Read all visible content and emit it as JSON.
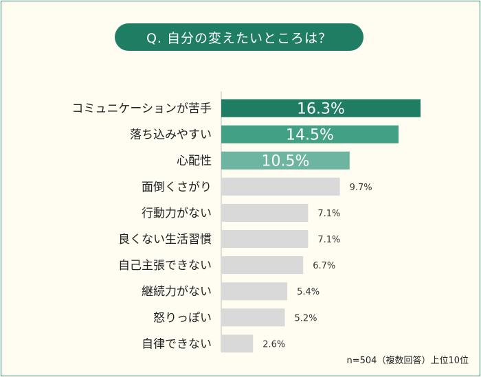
{
  "title": "Q. 自分の変えたいところは？",
  "note": "n=504（複数回答）上位10位",
  "chart_data": {
    "type": "bar",
    "orientation": "horizontal",
    "title": "Q. 自分の変えたいところは？",
    "unit": "%",
    "xlim": [
      0,
      17
    ],
    "categories": [
      "コミュニケーションが苦手",
      "落ち込みやすい",
      "心配性",
      "面倒くさがり",
      "行動力がない",
      "良くない生活習慣",
      "自己主張できない",
      "継続力がない",
      "怒りっぽい",
      "自律できない"
    ],
    "values": [
      16.3,
      14.5,
      10.5,
      9.7,
      7.1,
      7.1,
      6.7,
      5.4,
      5.2,
      2.6
    ],
    "labels": [
      "16.3%",
      "14.5%",
      "10.5%",
      "9.7%",
      "7.1%",
      "7.1%",
      "6.7%",
      "5.4%",
      "5.2%",
      "2.6%"
    ],
    "colors": [
      "#1e7d63",
      "#42a185",
      "#6db5a0",
      "#d9d9d9",
      "#d9d9d9",
      "#d9d9d9",
      "#d9d9d9",
      "#d9d9d9",
      "#d9d9d9",
      "#d9d9d9"
    ]
  }
}
